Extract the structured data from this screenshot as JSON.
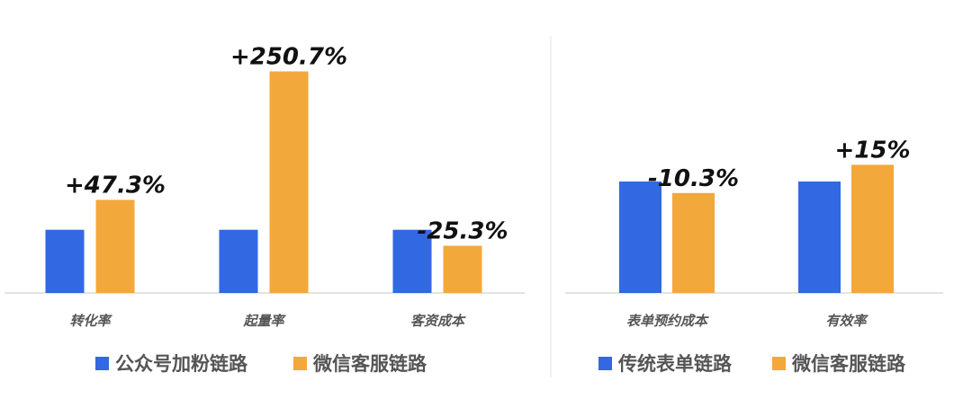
{
  "colors": {
    "blue": "#3268e2",
    "orange": "#f3a83b",
    "axis": "#e3e3e3",
    "divider": "#e6e6e6"
  },
  "chart_data": [
    {
      "type": "bar",
      "categories": [
        "转化率",
        "起量率",
        "客资成本"
      ],
      "series": [
        {
          "name": "公众号加粉链路",
          "values": [
            100,
            100,
            100
          ]
        },
        {
          "name": "微信客服链路",
          "values": [
            147.3,
            350.7,
            74.7
          ]
        }
      ],
      "data_labels": [
        "+47.3%",
        "+250.7%",
        "-25.3%"
      ],
      "legend": "bottom",
      "grid": false
    },
    {
      "type": "bar",
      "categories": [
        "表单预约成本",
        "有效率"
      ],
      "series": [
        {
          "name": "传统表单链路",
          "values": [
            100,
            100
          ]
        },
        {
          "name": "微信客服链路",
          "values": [
            89.7,
            115
          ]
        }
      ],
      "data_labels": [
        "-10.3%",
        "+15%"
      ],
      "legend": "bottom",
      "grid": false
    }
  ]
}
